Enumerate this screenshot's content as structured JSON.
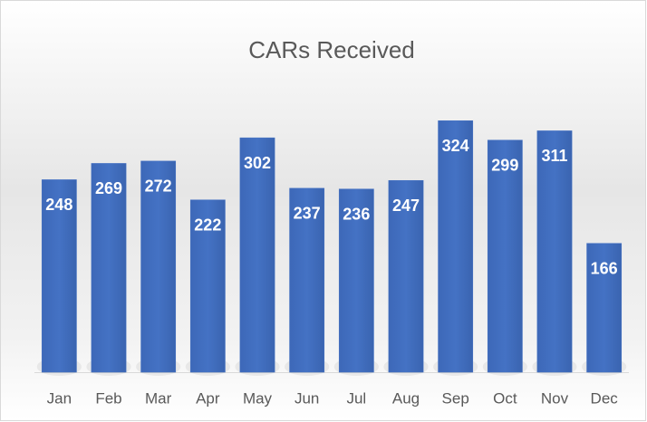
{
  "chart_data": {
    "type": "bar",
    "title": "CARs Received",
    "categories": [
      "Jan",
      "Feb",
      "Mar",
      "Apr",
      "May",
      "Jun",
      "Jul",
      "Aug",
      "Sep",
      "Oct",
      "Nov",
      "Dec"
    ],
    "values": [
      248,
      269,
      272,
      222,
      302,
      237,
      236,
      247,
      324,
      299,
      311,
      166
    ],
    "color": "#4472c4",
    "ylim": [
      0,
      350
    ]
  }
}
